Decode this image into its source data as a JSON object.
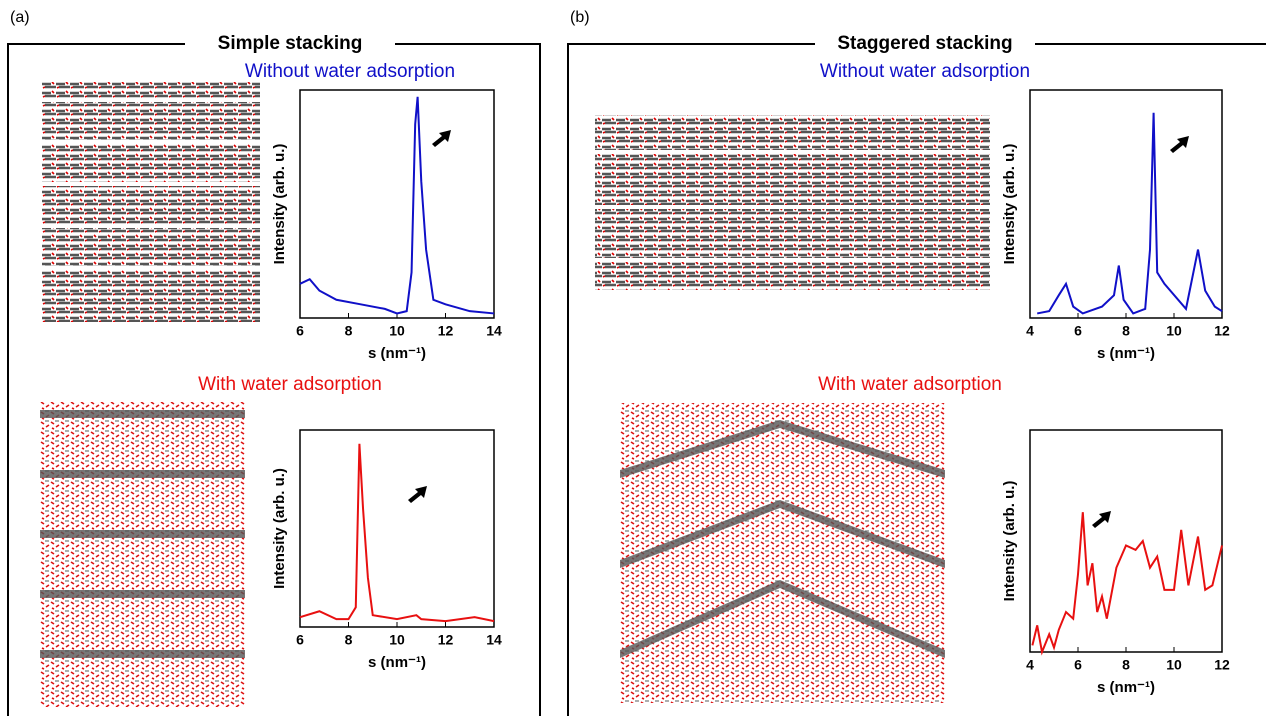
{
  "panels": [
    {
      "label": "(a)",
      "title": "Simple stacking"
    },
    {
      "label": "(b)",
      "title": "Staggered stacking"
    }
  ],
  "chart_data": [
    {
      "type": "line",
      "title": "Without water adsorption",
      "xlabel": "s (nm⁻¹)",
      "ylabel": "Intensity (arb. u.)",
      "color": "#1010c8",
      "xlim": [
        6,
        14
      ],
      "xticks": [
        6,
        8,
        10,
        12,
        14
      ],
      "ylim": [
        0,
        100
      ],
      "x": [
        6,
        6.4,
        6.8,
        7.5,
        8.5,
        9.5,
        10,
        10.4,
        10.6,
        10.75,
        10.85,
        11,
        11.2,
        11.5,
        12,
        13,
        14
      ],
      "values": [
        15,
        17,
        12,
        8,
        6,
        4,
        2,
        3,
        20,
        85,
        97,
        60,
        30,
        8,
        6,
        3,
        2
      ]
    },
    {
      "type": "line",
      "title": "With water adsorption",
      "xlabel": "s (nm⁻¹)",
      "ylabel": "Intensity (arb. u.)",
      "color": "#e81010",
      "xlim": [
        6,
        14
      ],
      "xticks": [
        6,
        8,
        10,
        12,
        14
      ],
      "ylim": [
        0,
        100
      ],
      "x": [
        6,
        6.8,
        7.5,
        8,
        8.3,
        8.45,
        8.6,
        8.8,
        9,
        10,
        10.8,
        11,
        12,
        13.2,
        14
      ],
      "values": [
        5,
        8,
        4,
        4,
        10,
        93,
        60,
        25,
        6,
        4,
        6,
        4,
        3,
        5,
        3
      ]
    },
    {
      "type": "line",
      "title": "Without water adsorption",
      "xlabel": "s (nm⁻¹)",
      "ylabel": "Intensity (arb. u.)",
      "color": "#1010c8",
      "xlim": [
        4,
        12
      ],
      "xticks": [
        4,
        6,
        8,
        10,
        12
      ],
      "ylim": [
        0,
        100
      ],
      "x": [
        4.3,
        4.8,
        5.2,
        5.5,
        5.8,
        6.2,
        7,
        7.5,
        7.7,
        7.9,
        8.3,
        8.8,
        9,
        9.15,
        9.3,
        9.6,
        10.5,
        11,
        11.3,
        11.7,
        12
      ],
      "values": [
        2,
        3,
        10,
        15,
        5,
        2,
        5,
        10,
        23,
        8,
        2,
        4,
        30,
        90,
        20,
        15,
        4,
        30,
        12,
        5,
        3
      ]
    },
    {
      "type": "line",
      "title": "With water adsorption",
      "xlabel": "s (nm⁻¹)",
      "ylabel": "Intensity (arb. u.)",
      "color": "#e81010",
      "xlim": [
        4,
        12
      ],
      "xticks": [
        4,
        6,
        8,
        10,
        12
      ],
      "ylim": [
        0,
        100
      ],
      "x": [
        4.1,
        4.3,
        4.5,
        4.8,
        5,
        5.2,
        5.5,
        5.8,
        6,
        6.2,
        6.4,
        6.6,
        6.8,
        7,
        7.2,
        7.6,
        8,
        8.4,
        8.7,
        9,
        9.3,
        9.6,
        10,
        10.3,
        10.6,
        11,
        11.3,
        11.6,
        12
      ],
      "values": [
        3,
        12,
        0,
        8,
        2,
        10,
        18,
        15,
        35,
        63,
        30,
        40,
        18,
        25,
        15,
        38,
        48,
        46,
        50,
        38,
        43,
        28,
        28,
        55,
        30,
        52,
        28,
        30,
        48
      ]
    }
  ]
}
